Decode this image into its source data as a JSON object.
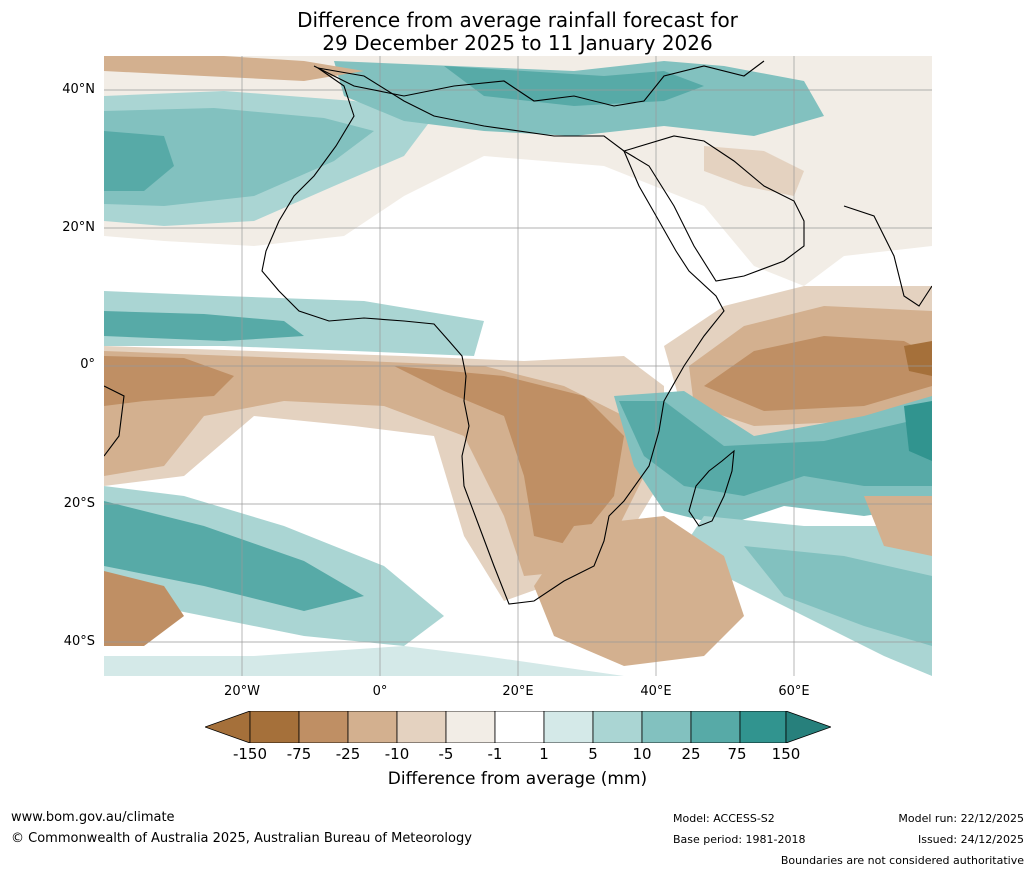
{
  "title": {
    "line1": "Difference from average rainfall forecast for",
    "line2": "29 December 2025 to 11 January 2026"
  },
  "axes": {
    "lat_labels": [
      "40°N",
      "20°N",
      "0°",
      "20°S",
      "40°S"
    ],
    "lat_values": [
      40,
      20,
      0,
      -20,
      -40
    ],
    "lon_labels": [
      "20°W",
      "0°",
      "20°E",
      "40°E",
      "60°E"
    ],
    "lon_values": [
      -20,
      0,
      20,
      40,
      60
    ],
    "lon_range": [
      -40,
      80
    ],
    "lat_range": [
      -45,
      45
    ],
    "grid": true
  },
  "legend": {
    "values": [
      "-150",
      "-75",
      "-25",
      "-10",
      "-5",
      "-1",
      "1",
      "5",
      "10",
      "25",
      "75",
      "150"
    ],
    "colors": [
      "#a5703a",
      "#bf8f64",
      "#d3b08f",
      "#e4d2c0",
      "#f2ede6",
      "#ffffff",
      "#d4e9e8",
      "#aad5d3",
      "#82c1bf",
      "#57aaa7",
      "#31948f",
      "#27807c"
    ],
    "title": "Difference from average (mm)"
  },
  "footer": {
    "url": "www.bom.gov.au/climate",
    "copyright": "© Commonwealth of Australia 2025, Australian Bureau of Meteorology",
    "model": "Model: ACCESS-S2",
    "base_period": "Base period: 1981-2018",
    "model_run": "Model run: 22/12/2025",
    "issued": "Issued: 24/12/2025",
    "disclaimer": "Boundaries are not considered authoritative"
  }
}
